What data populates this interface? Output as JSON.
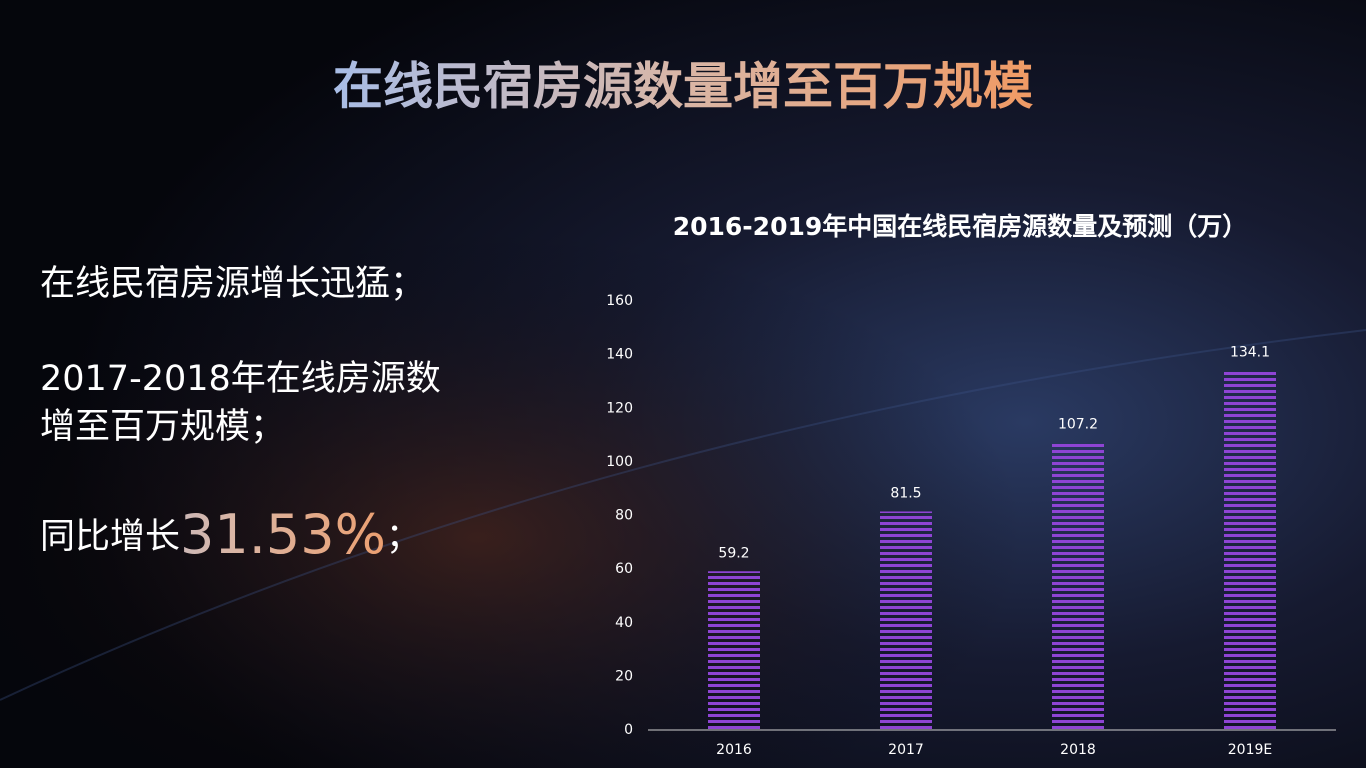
{
  "slide": {
    "title": "在线民宿房源数量增至百万规模",
    "points": [
      {
        "lines": [
          "在线民宿房源增长迅猛；"
        ]
      },
      {
        "lines": [
          "2017-2018年在线房源数",
          "增至百万规模；"
        ]
      },
      {
        "prefix": "同比增长",
        "highlight": "31.53%",
        "suffix": "；"
      }
    ]
  },
  "chart_data": {
    "type": "bar",
    "title": "2016-2019年中国在线民宿房源数量及预测（万）",
    "categories": [
      "2016",
      "2017",
      "2018",
      "2019E"
    ],
    "values": [
      59.2,
      81.5,
      107.2,
      134.1
    ],
    "color": "#8e44d4",
    "ylim": [
      0,
      160
    ],
    "yticks": [
      0,
      20,
      40,
      60,
      80,
      100,
      120,
      140,
      160
    ],
    "grid": false
  }
}
